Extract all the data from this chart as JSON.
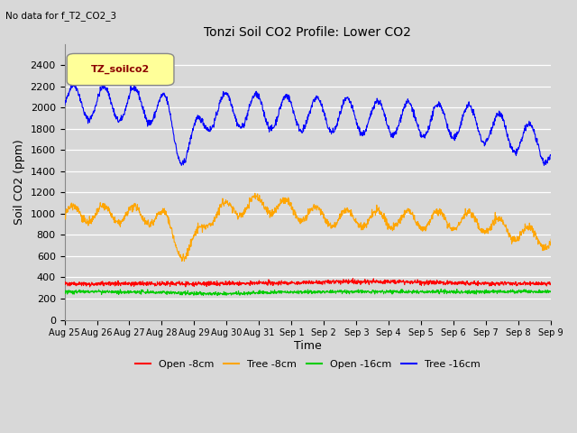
{
  "title": "Tonzi Soil CO2 Profile: Lower CO2",
  "subtitle": "No data for f_T2_CO2_3",
  "ylabel": "Soil CO2 (ppm)",
  "xlabel": "Time",
  "legend_label": "TZ_soilco2",
  "ylim": [
    0,
    2600
  ],
  "yticks": [
    0,
    200,
    400,
    600,
    800,
    1000,
    1200,
    1400,
    1600,
    1800,
    2000,
    2200,
    2400
  ],
  "xtick_labels": [
    "Aug 25",
    "Aug 26",
    "Aug 27",
    "Aug 28",
    "Aug 29",
    "Aug 30",
    "Aug 31",
    "Sep 1",
    "Sep 2",
    "Sep 3",
    "Sep 4",
    "Sep 5",
    "Sep 6",
    "Sep 7",
    "Sep 8",
    "Sep 9"
  ],
  "line_colors": {
    "open_8cm": "#ff0000",
    "tree_8cm": "#ffa500",
    "open_16cm": "#00cc00",
    "tree_16cm": "#0000ff"
  },
  "legend_labels": [
    "Open -8cm",
    "Tree -8cm",
    "Open -16cm",
    "Tree -16cm"
  ],
  "bg_color": "#d8d8d8",
  "plot_bg_color": "#d8d8d8",
  "legend_box_color": "#ffff99",
  "legend_text_color": "#8b0000"
}
